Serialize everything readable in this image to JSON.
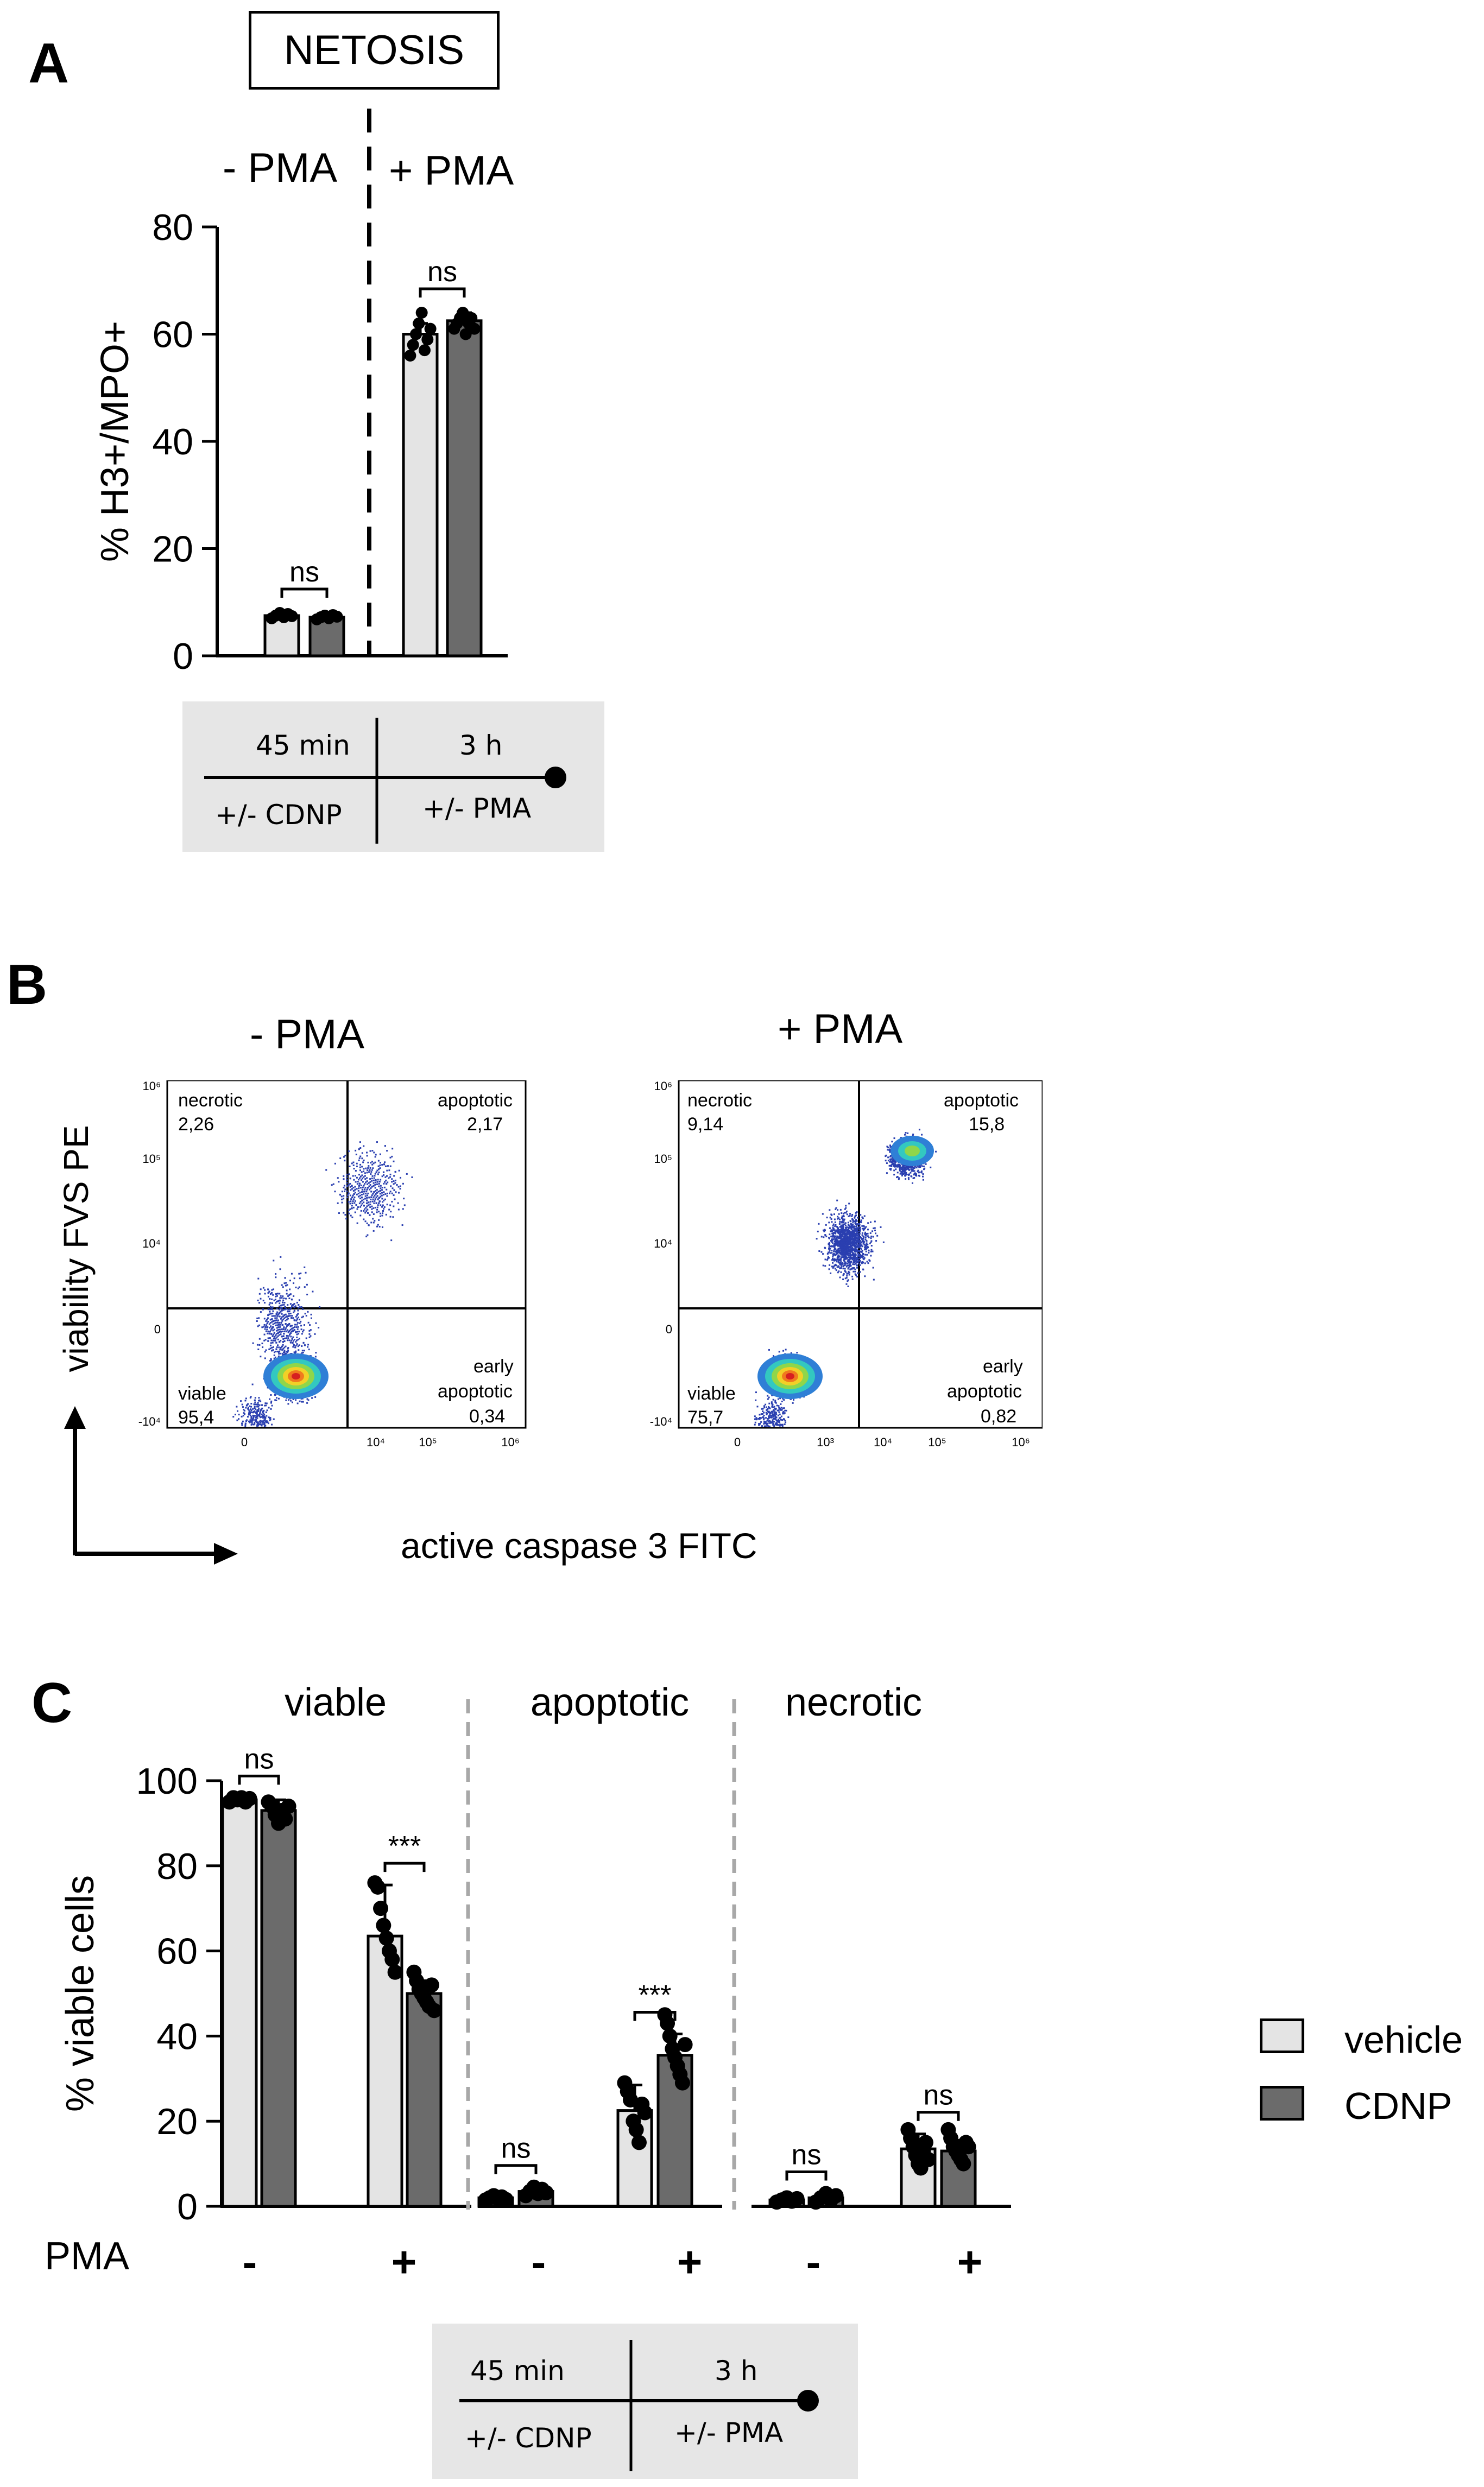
{
  "panels": {
    "a": "A",
    "b": "B",
    "c": "C"
  },
  "panel_a": {
    "header_box": "NETOSIS",
    "minus_label": "- PMA",
    "plus_label": "+ PMA",
    "timeline": {
      "t1": "45 min",
      "t2": "3 h",
      "treat1": "+/- CDNP",
      "treat2": "+/- PMA"
    }
  },
  "panel_b": {
    "minus_title": "- PMA",
    "plus_title": "+ PMA",
    "y_label": "viability FVS PE",
    "x_label": "active caspase 3 FITC",
    "plots": [
      {
        "necrotic_label": "necrotic",
        "necrotic": "2,26",
        "apoptotic_label": "apoptotic",
        "apoptotic": "2,17",
        "viable_label": "viable",
        "viable": "95,4",
        "early_label": "early",
        "early_label2": "apoptotic",
        "early": "0,34"
      },
      {
        "necrotic_label": "necrotic",
        "necrotic": "9,14",
        "apoptotic_label": "apoptotic",
        "apoptotic": "15,8",
        "viable_label": "viable",
        "viable": "75,7",
        "early_label": "early",
        "early_label2": "apoptotic",
        "early": "0,82"
      }
    ]
  },
  "panel_c": {
    "group_titles": [
      "viable",
      "apoptotic",
      "necrotic"
    ],
    "pma_label": "PMA",
    "pma_signs": [
      "-",
      "+",
      "-",
      "+",
      "-",
      "+"
    ],
    "timeline": {
      "t1": "45 min",
      "t2": "3 h",
      "treat1": "+/- CDNP",
      "treat2": "+/- PMA"
    }
  },
  "legend": [
    {
      "label": "vehicle",
      "color": "#e4e4e4"
    },
    {
      "label": "CDNP",
      "color": "#6b6b6b"
    }
  ],
  "chart_data": [
    {
      "type": "bar",
      "panel": "A",
      "ylabel": "% H3+/MPO+",
      "ylim": [
        0,
        80
      ],
      "yticks": [
        0,
        20,
        40,
        60,
        80
      ],
      "categories": [
        "- PMA",
        "+ PMA"
      ],
      "series": [
        {
          "name": "vehicle",
          "values": [
            7.5,
            60
          ],
          "errors": [
            0.5,
            2
          ],
          "points": [
            [
              7,
              7.5,
              8,
              7.2,
              7.8,
              7.4
            ],
            [
              56,
              58,
              60,
              62,
              64,
              57,
              59,
              61
            ]
          ]
        },
        {
          "name": "CDNP",
          "values": [
            7.2,
            62.5
          ],
          "errors": [
            0.6,
            1.5
          ],
          "points": [
            [
              6.8,
              7.2,
              7.5,
              7,
              7.6,
              7.3
            ],
            [
              61,
              62,
              63,
              64,
              60,
              62,
              63,
              61
            ]
          ]
        }
      ],
      "annotations": [
        "ns",
        "ns"
      ]
    },
    {
      "type": "bar",
      "panel": "C",
      "ylabel": "% viable cells",
      "ylim": [
        0,
        100
      ],
      "yticks": [
        0,
        20,
        40,
        60,
        80,
        100
      ],
      "groups": [
        {
          "title": "viable",
          "vehicle": [
            95.5,
            63.5
          ],
          "vehicle_err": [
            0.5,
            12
          ],
          "CDNP": [
            93,
            50
          ],
          "CDNP_err": [
            2.5,
            3
          ],
          "annotations": [
            "ns",
            "***"
          ],
          "vehicle_points": [
            [
              95,
              96,
              95.5,
              96,
              95,
              95.8
            ],
            [
              76,
              75,
              70,
              66,
              63,
              60,
              58,
              55
            ]
          ],
          "CDNP_points": [
            [
              95,
              94,
              92,
              90,
              93,
              91,
              94
            ],
            [
              55,
              53,
              51,
              50,
              49,
              48,
              47,
              52,
              46
            ]
          ]
        },
        {
          "title": "apoptotic",
          "vehicle": [
            2,
            22.5
          ],
          "vehicle_err": [
            0.5,
            6
          ],
          "CDNP": [
            3.5,
            35.5
          ],
          "CDNP_err": [
            1,
            5
          ],
          "annotations": [
            "ns",
            "***"
          ],
          "vehicle_points": [
            [
              1.5,
              2,
              2.5,
              1.8,
              2.2,
              1.6
            ],
            [
              29,
              27,
              25,
              20,
              18,
              15,
              24,
              22
            ]
          ],
          "CDNP_points": [
            [
              2.5,
              3.5,
              4.5,
              3,
              4,
              3.2
            ],
            [
              45,
              43,
              40,
              37,
              35,
              33,
              31,
              29,
              38
            ]
          ]
        },
        {
          "title": "necrotic",
          "vehicle": [
            1.5,
            13.5
          ],
          "vehicle_err": [
            0.5,
            3.5
          ],
          "CDNP": [
            2,
            13
          ],
          "CDNP_err": [
            1,
            2.5
          ],
          "annotations": [
            "ns",
            "ns"
          ],
          "vehicle_points": [
            [
              1,
              1.5,
              2,
              1.2,
              1.8
            ],
            [
              18,
              16,
              14,
              12,
              10,
              9,
              13,
              15,
              11
            ]
          ],
          "CDNP_points": [
            [
              1,
              2,
              3,
              1.5,
              2.5
            ],
            [
              18,
              16,
              14,
              13,
              12,
              11,
              10,
              15,
              14
            ]
          ]
        }
      ]
    }
  ]
}
